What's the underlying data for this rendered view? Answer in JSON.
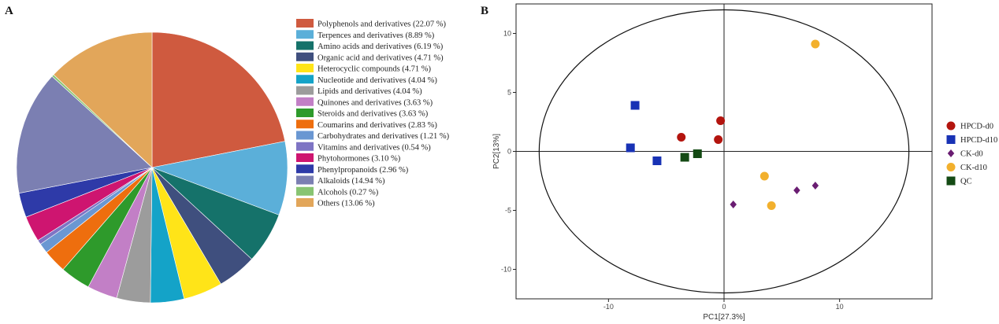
{
  "chart_data": [
    {
      "type": "pie",
      "panel_label": "A",
      "slices": [
        {
          "label": "Polyphenols and derivatives (22.07 %)",
          "value": 22.07,
          "color": "#CF5A3F"
        },
        {
          "label": "Terpences and derivatives (8.89 %)",
          "value": 8.89,
          "color": "#5BAFD9"
        },
        {
          "label": "Amino acids and derivatives (6.19 %)",
          "value": 6.19,
          "color": "#15726A"
        },
        {
          "label": "Organic acid and derivatives (4.71 %)",
          "value": 4.71,
          "color": "#3F4F7E"
        },
        {
          "label": "Heterocyclic compounds (4.71 %)",
          "value": 4.71,
          "color": "#FFE418"
        },
        {
          "label": "Nucleotide and derivatives (4.04 %)",
          "value": 4.04,
          "color": "#14A3C8"
        },
        {
          "label": "Lipids and derivatives (4.04 %)",
          "value": 4.04,
          "color": "#9C9C9C"
        },
        {
          "label": "Quinones and derivatives (3.63 %)",
          "value": 3.63,
          "color": "#C27FC6"
        },
        {
          "label": "Steroids and derivatives (3.63 %)",
          "value": 3.63,
          "color": "#2E9A2B"
        },
        {
          "label": "Coumarins and derivatives (2.83 %)",
          "value": 2.83,
          "color": "#EE6E0E"
        },
        {
          "label": "Carbohydrates and derivatives (1.21 %)",
          "value": 1.21,
          "color": "#6A97D2"
        },
        {
          "label": "Vitamins and derivatives (0.54 %)",
          "value": 0.54,
          "color": "#7E74C4"
        },
        {
          "label": "Phytohormones (3.10 %)",
          "value": 3.1,
          "color": "#CE1570"
        },
        {
          "label": "Phenylpropanoids (2.96 %)",
          "value": 2.96,
          "color": "#2E3AA8"
        },
        {
          "label": "Alkaloids (14.94 %)",
          "value": 14.94,
          "color": "#7B7FB2"
        },
        {
          "label": "Alcohols (0.27 %)",
          "value": 0.27,
          "color": "#88C472"
        },
        {
          "label": "Others (13.06 %)",
          "value": 13.06,
          "color": "#E2A65A"
        }
      ]
    },
    {
      "type": "scatter",
      "panel_label": "B",
      "xlabel": "PC1[27.3%]",
      "ylabel": "PC2[13%]",
      "xlim": [
        -18,
        18
      ],
      "ylim": [
        -12.5,
        12.5
      ],
      "xticks": [
        -10,
        0,
        10
      ],
      "yticks": [
        -10,
        -5,
        0,
        5,
        10
      ],
      "grid": false,
      "reference_lines": {
        "x": 0,
        "y": 0
      },
      "confidence_ellipse": {
        "center": [
          0,
          0
        ],
        "semi_axis_x": 16,
        "semi_axis_y": 12
      },
      "legend_position": "right",
      "series": [
        {
          "name": "HPCD-d0",
          "marker": "circle",
          "color": "#B3140E",
          "points": [
            [
              -3.7,
              1.2
            ],
            [
              -0.3,
              2.6
            ],
            [
              -0.5,
              1.0
            ]
          ]
        },
        {
          "name": "HPCD-d10",
          "marker": "square",
          "color": "#1832B5",
          "points": [
            [
              -7.7,
              3.9
            ],
            [
              -8.1,
              0.3
            ],
            [
              -5.8,
              -0.8
            ]
          ]
        },
        {
          "name": "CK-d0",
          "marker": "diamond",
          "color": "#6A1D72",
          "points": [
            [
              0.8,
              -4.5
            ],
            [
              6.3,
              -3.3
            ],
            [
              7.9,
              -2.9
            ]
          ]
        },
        {
          "name": "CK-d10",
          "marker": "circle",
          "color": "#F2B02D",
          "points": [
            [
              7.9,
              9.1
            ],
            [
              3.5,
              -2.1
            ],
            [
              4.1,
              -4.6
            ]
          ]
        },
        {
          "name": "QC",
          "marker": "square",
          "color": "#144A14",
          "points": [
            [
              -3.4,
              -0.5
            ],
            [
              -2.3,
              -0.2
            ]
          ]
        }
      ]
    }
  ]
}
